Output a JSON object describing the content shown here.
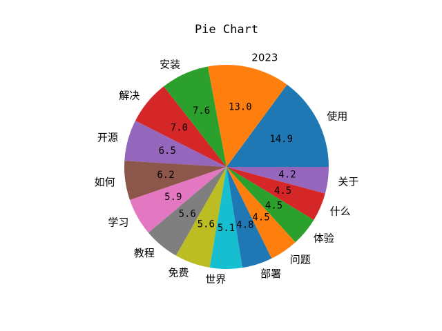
{
  "chart_data": {
    "type": "pie",
    "title": "Pie Chart",
    "labels": [
      "使用",
      "2023",
      "安装",
      "解决",
      "开源",
      "如何",
      "学习",
      "教程",
      "免费",
      "世界",
      "部署",
      "问题",
      "体验",
      "什么",
      "关于"
    ],
    "values": [
      14.9,
      13.0,
      7.6,
      7.0,
      6.5,
      6.2,
      5.9,
      5.6,
      5.6,
      5.1,
      4.8,
      4.5,
      4.5,
      4.5,
      4.2
    ],
    "value_labels": [
      "14.9",
      "13.0",
      "7.6",
      "7.0",
      "6.5",
      "6.2",
      "5.9",
      "5.6",
      "5.6",
      "5.1",
      "4.8",
      "4.5",
      "4.5",
      "4.5",
      "4.2"
    ],
    "colors": [
      "#1f77b4",
      "#ff7f0e",
      "#2ca02c",
      "#d62728",
      "#9467bd",
      "#8c564b",
      "#e377c2",
      "#7f7f7f",
      "#bcbd22",
      "#17becf",
      "#1f77b4",
      "#ff7f0e",
      "#2ca02c",
      "#d62728",
      "#9467bd"
    ],
    "start_angle_deg": 0,
    "direction": "counterclockwise",
    "legend": "none"
  }
}
